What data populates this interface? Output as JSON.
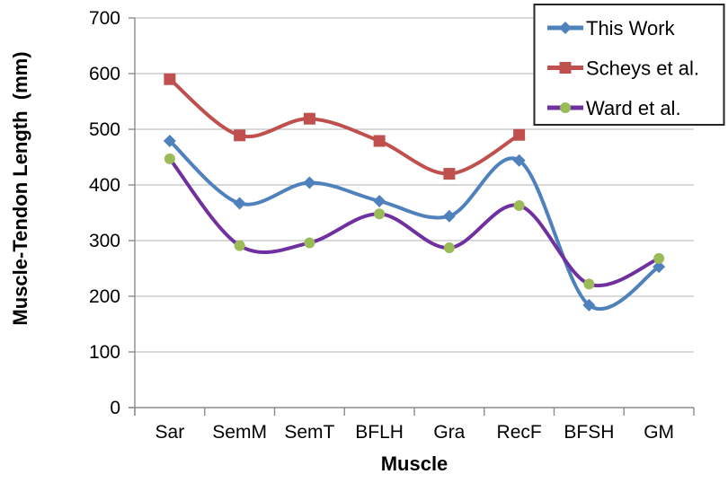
{
  "chart_data": {
    "type": "line",
    "subtype": "smoothed-line-with-markers",
    "title": "",
    "xlabel": "Muscle",
    "ylabel": "Muscle-Tendon Length  (mm)",
    "categories": [
      "Sar",
      "SemM",
      "SemT",
      "BFLH",
      "Gra",
      "RecF",
      "BFSH",
      "GM"
    ],
    "ylim": [
      0,
      700
    ],
    "y_ticks": [
      0,
      100,
      200,
      300,
      400,
      500,
      600,
      700
    ],
    "grid": "horizontal",
    "legend_position": "top-right-overlay",
    "legend_border": true,
    "series": [
      {
        "name": "This Work",
        "color": "#4F81BD",
        "marker": "diamond",
        "marker_color": "#4F81BD",
        "values": [
          479,
          367,
          404,
          371,
          344,
          444,
          184,
          253
        ]
      },
      {
        "name": "Scheys et al.",
        "color": "#C0504D",
        "marker": "square",
        "marker_color": "#C0504D",
        "values": [
          590,
          489,
          519,
          479,
          420,
          490,
          null,
          null
        ]
      },
      {
        "name": "Ward et al.",
        "color": "#7030A0",
        "marker": "circle",
        "marker_color": "#9BBB59",
        "values": [
          447,
          291,
          296,
          348,
          287,
          363,
          222,
          268
        ]
      }
    ]
  },
  "colors": {
    "background": "#ffffff",
    "gridline": "#b3b3b3",
    "axis": "#8c8c8c",
    "text": "#000000",
    "legend_border": "#262626"
  }
}
